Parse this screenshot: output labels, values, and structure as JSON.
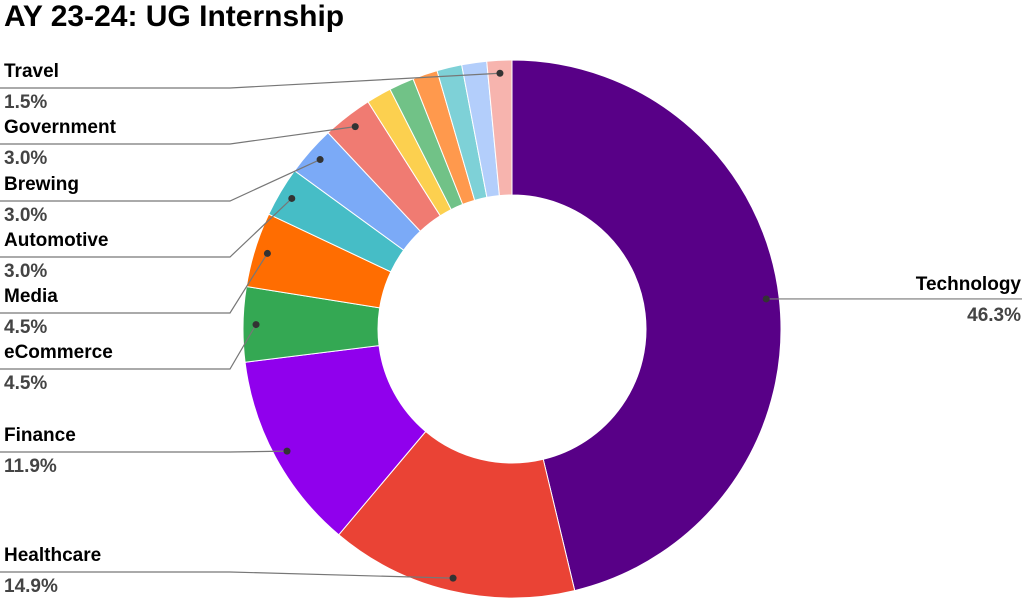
{
  "chart_data": {
    "type": "donut",
    "title": "AY 23-24: UG Internship",
    "categories": [
      "Technology",
      "Healthcare",
      "Finance",
      "eCommerce",
      "Media",
      "Automotive",
      "Brewing",
      "Government",
      null,
      null,
      null,
      null,
      null,
      "Travel"
    ],
    "values": [
      46.3,
      14.9,
      11.9,
      4.5,
      4.5,
      3.0,
      3.0,
      3.0,
      1.5,
      1.5,
      1.5,
      1.5,
      1.5,
      1.5
    ],
    "value_labels": [
      "46.3%",
      "14.9%",
      "11.9%",
      "4.5%",
      "4.5%",
      "3.0%",
      "3.0%",
      "3.0%",
      null,
      null,
      null,
      null,
      null,
      "1.5%"
    ],
    "colors": [
      "#580087",
      "#ea4335",
      "#9000ed",
      "#34a853",
      "#ff6d01",
      "#46bdc6",
      "#7baaf7",
      "#f07b72",
      "#fcd04f",
      "#71c287",
      "#ff994d",
      "#7ed1d7",
      "#b3cefb",
      "#f7b4ae"
    ]
  }
}
